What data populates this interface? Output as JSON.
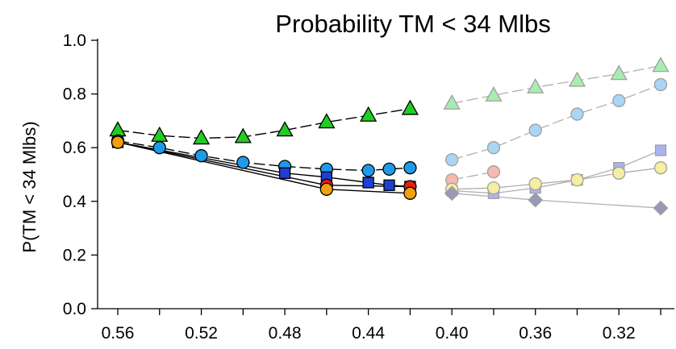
{
  "chart_data": {
    "type": "line",
    "title": "Probability TM < 34 Mlbs",
    "xlabel": "",
    "ylabel": "P(TM < 34 Mlbs)",
    "xlim": [
      0.57,
      0.29
    ],
    "ylim": [
      0.0,
      1.0
    ],
    "x_ticks": [
      "0.56",
      "0.52",
      "0.48",
      "0.44",
      "0.40",
      "0.36",
      "0.32"
    ],
    "x_tick_values": [
      0.56,
      0.52,
      0.48,
      0.44,
      0.4,
      0.36,
      0.32
    ],
    "y_ticks": [
      "0.0",
      "0.2",
      "0.4",
      "0.6",
      "0.8",
      "1.0"
    ],
    "y_tick_values": [
      0.0,
      0.2,
      0.4,
      0.6,
      0.8,
      1.0
    ],
    "grid": false,
    "legend": "none",
    "series": [
      {
        "marker": "triangle",
        "color": "#22cc22",
        "faded": false,
        "dashed": true,
        "x": [
          0.56,
          0.54,
          0.52,
          0.5,
          0.48,
          0.46,
          0.44,
          0.42
        ],
        "y": [
          0.665,
          0.645,
          0.635,
          0.64,
          0.665,
          0.695,
          0.72,
          0.745
        ]
      },
      {
        "marker": "circle",
        "color": "#1e9be8",
        "faded": false,
        "dashed": true,
        "x": [
          0.56,
          0.54,
          0.52,
          0.5,
          0.48,
          0.46,
          0.44,
          0.43,
          0.42
        ],
        "y": [
          0.625,
          0.6,
          0.57,
          0.545,
          0.53,
          0.52,
          0.515,
          0.52,
          0.525
        ]
      },
      {
        "marker": "square",
        "color": "#1e3fd6",
        "faded": false,
        "dashed": false,
        "x": [
          0.56,
          0.48,
          0.46,
          0.44,
          0.43,
          0.42
        ],
        "y": [
          0.62,
          0.505,
          0.49,
          0.47,
          0.46,
          0.455
        ]
      },
      {
        "marker": "circle",
        "color": "#e81e10",
        "faded": false,
        "dashed": false,
        "x": [
          0.56,
          0.46,
          0.42
        ],
        "y": [
          0.62,
          0.46,
          0.455
        ]
      },
      {
        "marker": "circle",
        "color": "#f0a010",
        "faded": false,
        "dashed": false,
        "x": [
          0.56,
          0.46,
          0.42
        ],
        "y": [
          0.62,
          0.445,
          0.43
        ]
      },
      {
        "marker": "triangle",
        "color": "#a8ecb0",
        "faded": true,
        "dashed": true,
        "x": [
          0.4,
          0.38,
          0.36,
          0.34,
          0.32,
          0.3
        ],
        "y": [
          0.765,
          0.795,
          0.825,
          0.85,
          0.875,
          0.905
        ]
      },
      {
        "marker": "circle",
        "color": "#a8d6f4",
        "faded": true,
        "dashed": true,
        "x": [
          0.4,
          0.38,
          0.36,
          0.34,
          0.32,
          0.3
        ],
        "y": [
          0.555,
          0.6,
          0.665,
          0.725,
          0.775,
          0.835
        ]
      },
      {
        "marker": "circle",
        "color": "#f6b8b0",
        "faded": true,
        "dashed": true,
        "x": [
          0.4,
          0.38
        ],
        "y": [
          0.48,
          0.51
        ]
      },
      {
        "marker": "square",
        "color": "#a9b4f0",
        "faded": true,
        "dashed": false,
        "x": [
          0.4,
          0.38,
          0.36,
          0.34,
          0.32,
          0.3
        ],
        "y": [
          0.44,
          0.43,
          0.45,
          0.48,
          0.525,
          0.59
        ]
      },
      {
        "marker": "circle",
        "color": "#f6eea0",
        "faded": true,
        "dashed": false,
        "x": [
          0.4,
          0.38,
          0.36,
          0.34,
          0.32,
          0.3
        ],
        "y": [
          0.445,
          0.45,
          0.465,
          0.48,
          0.505,
          0.525
        ]
      },
      {
        "marker": "diamond",
        "color": "#9898b8",
        "faded": true,
        "dashed": false,
        "x": [
          0.4,
          0.36,
          0.3
        ],
        "y": [
          0.43,
          0.405,
          0.375
        ]
      }
    ]
  }
}
